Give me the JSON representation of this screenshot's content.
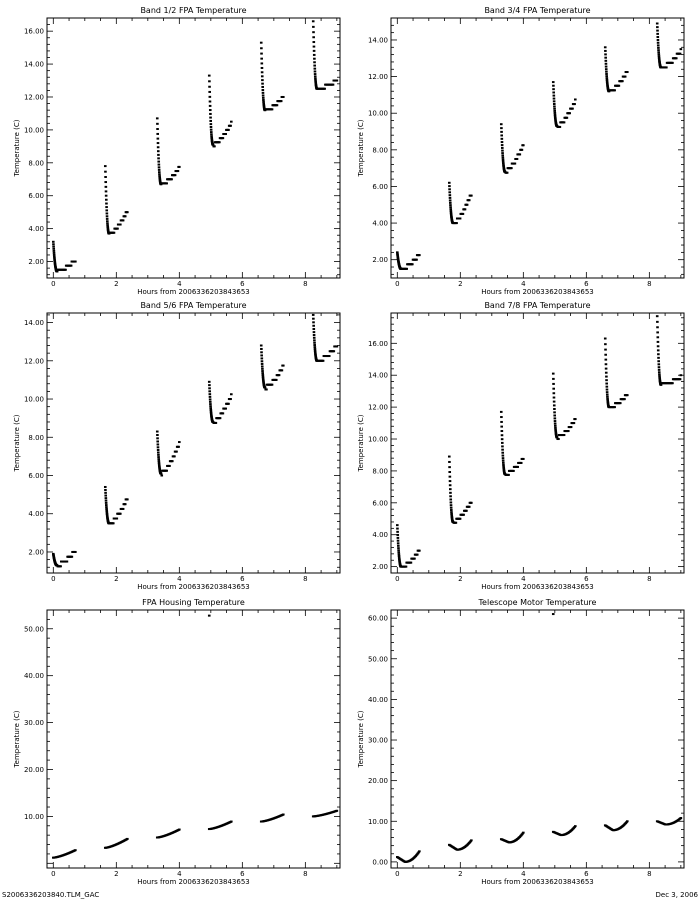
{
  "footer": {
    "file_label": "S2006336203840.TLM_GAC",
    "date_label": "Dec  3, 2006"
  },
  "colors": {
    "axis": "#000000",
    "marker": "#000000",
    "background": "#ffffff"
  },
  "chart_data": [
    {
      "type": "scatter",
      "title": "Band 1/2 FPA Temperature",
      "xlabel": "Hours from 2006336203843653",
      "ylabel": "Temperature (C)",
      "xlim": [
        -0.2,
        9.1
      ],
      "ylim": [
        1.0,
        16.8
      ],
      "xticks": [
        0,
        2,
        4,
        6,
        8
      ],
      "xtick_labels": [
        "0",
        "2",
        "4",
        "6",
        "8"
      ],
      "yticks": [
        2,
        4,
        6,
        8,
        10,
        12,
        14,
        16
      ],
      "ytick_labels": [
        "2.00",
        "4.00",
        "6.00",
        "8.00",
        "10.00",
        "12.00",
        "14.00",
        "16.00"
      ],
      "grid": false,
      "cycles": [
        {
          "t_start": 0.0,
          "peak": 3.2,
          "min": 1.4,
          "end": 2.1,
          "t_end": 0.7
        },
        {
          "t_start": 1.65,
          "peak": 7.8,
          "min": 3.7,
          "end": 5.1,
          "t_end": 2.35
        },
        {
          "t_start": 3.3,
          "peak": 10.7,
          "min": 6.7,
          "end": 7.7,
          "t_end": 4.0
        },
        {
          "t_start": 4.95,
          "peak": 13.3,
          "min": 9.1,
          "end": 10.4,
          "t_end": 5.65
        },
        {
          "t_start": 6.6,
          "peak": 15.3,
          "min": 11.2,
          "end": 12.0,
          "t_end": 7.3
        },
        {
          "t_start": 8.25,
          "peak": 16.6,
          "min": 12.5,
          "end": 13.0,
          "t_end": 9.0
        }
      ]
    },
    {
      "type": "scatter",
      "title": "Band 3/4 FPA Temperature",
      "xlabel": "Hours from 2006336203843653",
      "ylabel": "Temperature (C)",
      "xlim": [
        -0.2,
        9.1
      ],
      "ylim": [
        1.0,
        15.2
      ],
      "xticks": [
        0,
        2,
        4,
        6,
        8
      ],
      "xtick_labels": [
        "0",
        "2",
        "4",
        "6",
        "8"
      ],
      "yticks": [
        2,
        4,
        6,
        8,
        10,
        12,
        14
      ],
      "ytick_labels": [
        "2.00",
        "4.00",
        "6.00",
        "8.00",
        "10.00",
        "12.00",
        "14.00"
      ],
      "grid": false,
      "cycles": [
        {
          "t_start": 0.0,
          "peak": 2.4,
          "min": 1.5,
          "end": 2.3,
          "t_end": 0.7
        },
        {
          "t_start": 1.65,
          "peak": 6.2,
          "min": 4.0,
          "end": 5.6,
          "t_end": 2.35
        },
        {
          "t_start": 3.3,
          "peak": 9.4,
          "min": 6.8,
          "end": 8.3,
          "t_end": 4.0
        },
        {
          "t_start": 4.95,
          "peak": 11.7,
          "min": 9.3,
          "end": 10.7,
          "t_end": 5.65
        },
        {
          "t_start": 6.6,
          "peak": 13.6,
          "min": 11.2,
          "end": 12.3,
          "t_end": 7.3
        },
        {
          "t_start": 8.25,
          "peak": 14.9,
          "min": 12.5,
          "end": 13.4,
          "t_end": 9.0
        }
      ]
    },
    {
      "type": "scatter",
      "title": "Band 5/6 FPA Temperature",
      "xlabel": "Hours from 2006336203843653",
      "ylabel": "Temperature (C)",
      "xlim": [
        -0.2,
        9.1
      ],
      "ylim": [
        0.9,
        14.5
      ],
      "xticks": [
        0,
        2,
        4,
        6,
        8
      ],
      "xtick_labels": [
        "0",
        "2",
        "4",
        "6",
        "8"
      ],
      "yticks": [
        2,
        4,
        6,
        8,
        10,
        12,
        14
      ],
      "ytick_labels": [
        "2.00",
        "4.00",
        "6.00",
        "8.00",
        "10.00",
        "12.00",
        "14.00"
      ],
      "grid": false,
      "cycles": [
        {
          "t_start": 0.0,
          "peak": 1.9,
          "min": 1.3,
          "end": 2.1,
          "t_end": 0.7
        },
        {
          "t_start": 1.65,
          "peak": 5.4,
          "min": 3.5,
          "end": 4.8,
          "t_end": 2.35
        },
        {
          "t_start": 3.3,
          "peak": 8.3,
          "min": 6.1,
          "end": 7.7,
          "t_end": 4.0
        },
        {
          "t_start": 4.95,
          "peak": 10.9,
          "min": 8.8,
          "end": 10.2,
          "t_end": 5.65
        },
        {
          "t_start": 6.6,
          "peak": 12.8,
          "min": 10.6,
          "end": 11.7,
          "t_end": 7.3
        },
        {
          "t_start": 8.25,
          "peak": 14.4,
          "min": 12.0,
          "end": 12.8,
          "t_end": 9.0
        }
      ]
    },
    {
      "type": "scatter",
      "title": "Band 7/8 FPA Temperature",
      "xlabel": "Hours from 2006336203843653",
      "ylabel": "Temperature (C)",
      "xlim": [
        -0.2,
        9.1
      ],
      "ylim": [
        1.6,
        17.9
      ],
      "xticks": [
        0,
        2,
        4,
        6,
        8
      ],
      "xtick_labels": [
        "0",
        "2",
        "4",
        "6",
        "8"
      ],
      "yticks": [
        2,
        4,
        6,
        8,
        10,
        12,
        14,
        16
      ],
      "ytick_labels": [
        "2.00",
        "4.00",
        "6.00",
        "8.00",
        "10.00",
        "12.00",
        "14.00",
        "16.00"
      ],
      "grid": false,
      "cycles": [
        {
          "t_start": 0.0,
          "peak": 4.6,
          "min": 2.0,
          "end": 3.0,
          "t_end": 0.7
        },
        {
          "t_start": 1.65,
          "peak": 8.9,
          "min": 4.8,
          "end": 6.1,
          "t_end": 2.35
        },
        {
          "t_start": 3.3,
          "peak": 11.7,
          "min": 7.8,
          "end": 8.8,
          "t_end": 4.0
        },
        {
          "t_start": 4.95,
          "peak": 14.1,
          "min": 10.1,
          "end": 11.2,
          "t_end": 5.65
        },
        {
          "t_start": 6.6,
          "peak": 16.3,
          "min": 12.0,
          "end": 12.8,
          "t_end": 7.3
        },
        {
          "t_start": 8.25,
          "peak": 17.7,
          "min": 13.4,
          "end": 13.9,
          "t_end": 9.0
        }
      ]
    },
    {
      "type": "scatter",
      "title": "FPA Housing Temperature",
      "xlabel": "Hours from 2006336203843653",
      "ylabel": "Temperature (C)",
      "xlim": [
        -0.2,
        9.1
      ],
      "ylim": [
        -1.0,
        54.0
      ],
      "xticks": [
        0,
        2,
        4,
        6,
        8
      ],
      "xtick_labels": [
        "0",
        "2",
        "4",
        "6",
        "8"
      ],
      "yticks": [
        10,
        20,
        30,
        40,
        50
      ],
      "ytick_labels": [
        "10.00",
        "20.00",
        "30.00",
        "40.00",
        "50.00"
      ],
      "grid": false,
      "outlier": {
        "x": 4.95,
        "y": 52.8
      },
      "segments": [
        {
          "t_start": 0.0,
          "t_end": 0.7,
          "start": 1.2,
          "end": 2.8
        },
        {
          "t_start": 1.65,
          "t_end": 2.35,
          "start": 3.3,
          "end": 5.2
        },
        {
          "t_start": 3.3,
          "t_end": 4.0,
          "start": 5.5,
          "end": 7.2
        },
        {
          "t_start": 4.95,
          "t_end": 5.65,
          "start": 7.3,
          "end": 8.9
        },
        {
          "t_start": 6.6,
          "t_end": 7.3,
          "start": 8.9,
          "end": 10.4
        },
        {
          "t_start": 8.25,
          "t_end": 9.0,
          "start": 10.0,
          "end": 11.2
        }
      ]
    },
    {
      "type": "scatter",
      "title": "Telescope Motor Temperature",
      "xlabel": "Hours from 2006336203843653",
      "ylabel": "Temperature (C)",
      "xlim": [
        -0.2,
        9.1
      ],
      "ylim": [
        -1.5,
        62.0
      ],
      "xticks": [
        0,
        2,
        4,
        6,
        8
      ],
      "xtick_labels": [
        "0",
        "2",
        "4",
        "6",
        "8"
      ],
      "yticks": [
        0,
        10,
        20,
        30,
        40,
        50,
        60
      ],
      "ytick_labels": [
        "0.00",
        "10.00",
        "20.00",
        "30.00",
        "40.00",
        "50.00",
        "60.00"
      ],
      "grid": false,
      "outlier": {
        "x": 4.95,
        "y": 61.0
      },
      "cycles": [
        {
          "t_start": 0.0,
          "peak": 1.2,
          "min": 0.0,
          "end": 2.6,
          "t_end": 0.7
        },
        {
          "t_start": 1.65,
          "peak": 4.2,
          "min": 3.0,
          "end": 5.3,
          "t_end": 2.35
        },
        {
          "t_start": 3.3,
          "peak": 5.6,
          "min": 4.8,
          "end": 7.2,
          "t_end": 4.0
        },
        {
          "t_start": 4.95,
          "peak": 7.4,
          "min": 6.6,
          "end": 8.8,
          "t_end": 5.65
        },
        {
          "t_start": 6.6,
          "peak": 9.0,
          "min": 7.8,
          "end": 10.0,
          "t_end": 7.3
        },
        {
          "t_start": 8.25,
          "peak": 10.0,
          "min": 9.2,
          "end": 10.8,
          "t_end": 9.0
        }
      ]
    }
  ]
}
